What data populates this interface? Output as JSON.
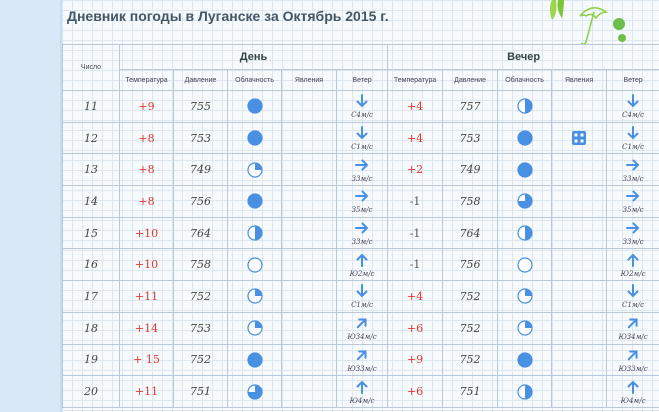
{
  "title": "Дневник погоды в Луганске за Октябрь 2015 г.",
  "headers": {
    "number": "Число",
    "day": "День",
    "evening": "Вечер",
    "temperature": "Температура",
    "pressure": "Давление",
    "cloudiness": "Облачность",
    "phenomena": "Явления",
    "wind": "Ветер"
  },
  "colors": {
    "accent": "#4a90e2",
    "temp_positive": "#e0392e",
    "grid": "#dde7f0"
  },
  "rows": [
    {
      "day": "11",
      "d_temp": "+9",
      "d_pres": "755",
      "d_cloud": "full",
      "d_phen": "",
      "d_wdir": "down",
      "d_wind": "С4м/с",
      "e_temp": "+4",
      "e_pres": "757",
      "e_cloud": "half",
      "e_phen": "",
      "e_wdir": "down",
      "e_wind": "С4м/с"
    },
    {
      "day": "12",
      "d_temp": "+8",
      "d_pres": "753",
      "d_cloud": "full",
      "d_phen": "",
      "d_wdir": "down",
      "d_wind": "С1м/с",
      "e_temp": "+4",
      "e_pres": "753",
      "e_cloud": "full",
      "e_phen": "snow",
      "e_wdir": "down",
      "e_wind": "С1м/с"
    },
    {
      "day": "13",
      "d_temp": "+8",
      "d_pres": "749",
      "d_cloud": "quarter",
      "d_phen": "",
      "d_wdir": "right",
      "d_wind": "З3м/с",
      "e_temp": "+2",
      "e_pres": "749",
      "e_cloud": "full",
      "e_phen": "",
      "e_wdir": "right",
      "e_wind": "З3м/с"
    },
    {
      "day": "14",
      "d_temp": "+8",
      "d_pres": "756",
      "d_cloud": "full",
      "d_phen": "",
      "d_wdir": "right",
      "d_wind": "З5м/с",
      "e_temp": "-1",
      "e_pres": "758",
      "e_cloud": "threequarter",
      "e_phen": "",
      "e_wdir": "right",
      "e_wind": "З5м/с"
    },
    {
      "day": "15",
      "d_temp": "+10",
      "d_pres": "764",
      "d_cloud": "half",
      "d_phen": "",
      "d_wdir": "right",
      "d_wind": "З3м/с",
      "e_temp": "-1",
      "e_pres": "764",
      "e_cloud": "half",
      "e_phen": "",
      "e_wdir": "right",
      "e_wind": "З3м/с"
    },
    {
      "day": "16",
      "d_temp": "+10",
      "d_pres": "758",
      "d_cloud": "empty",
      "d_phen": "",
      "d_wdir": "up",
      "d_wind": "Ю2м/с",
      "e_temp": "-1",
      "e_pres": "756",
      "e_cloud": "empty",
      "e_phen": "",
      "e_wdir": "up",
      "e_wind": "Ю2м/с"
    },
    {
      "day": "17",
      "d_temp": "+11",
      "d_pres": "752",
      "d_cloud": "quarter",
      "d_phen": "",
      "d_wdir": "down",
      "d_wind": "С1м/с",
      "e_temp": "+4",
      "e_pres": "752",
      "e_cloud": "quarter",
      "e_phen": "",
      "e_wdir": "down",
      "e_wind": "С1м/с"
    },
    {
      "day": "18",
      "d_temp": "+14",
      "d_pres": "753",
      "d_cloud": "quarter",
      "d_phen": "",
      "d_wdir": "upright",
      "d_wind": "ЮЗ4м/с",
      "e_temp": "+6",
      "e_pres": "752",
      "e_cloud": "quarter",
      "e_phen": "",
      "e_wdir": "upright",
      "e_wind": "ЮЗ4м/с"
    },
    {
      "day": "19",
      "d_temp": "+ 15",
      "d_pres": "752",
      "d_cloud": "full",
      "d_phen": "",
      "d_wdir": "upright",
      "d_wind": "ЮЗ3м/с",
      "e_temp": "+9",
      "e_pres": "752",
      "e_cloud": "full",
      "e_phen": "",
      "e_wdir": "upright",
      "e_wind": "ЮЗ3м/с"
    },
    {
      "day": "20",
      "d_temp": "+11",
      "d_pres": "751",
      "d_cloud": "threequarter",
      "d_phen": "",
      "d_wdir": "up",
      "d_wind": "Ю4м/с",
      "e_temp": "+6",
      "e_pres": "751",
      "e_cloud": "half",
      "e_phen": "",
      "e_wdir": "up",
      "e_wind": "Ю4м/с"
    }
  ]
}
